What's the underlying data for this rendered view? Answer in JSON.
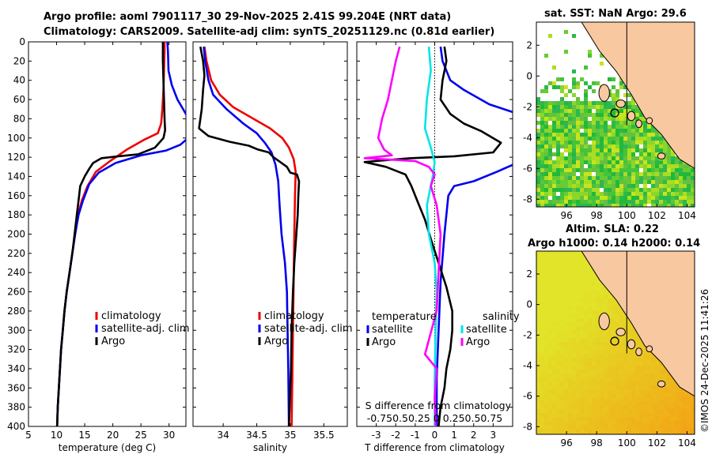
{
  "titles": {
    "line1": "Argo profile: aoml 7901117_30 29-Nov-2025 2.41S 99.204E (NRT data)",
    "line2": "Climatology: CARS2009. Satellite-adj clim: synTS_20251129.nc (0.81d earlier)",
    "sst": "sat. SST: NaN Argo: 29.6",
    "sla1": "Altim. SLA: 0.22",
    "sla2": "Argo h1000: 0.14 h2000: 0.14"
  },
  "footer": "©IMOS 24-Dec-2025 11:41:26",
  "colors": {
    "clim": "#ee0000",
    "sat": "#0000ee",
    "argo": "#000000",
    "cyan": "#00e5e5",
    "magenta": "#ff00ff",
    "land": "#f8c8a0"
  },
  "chart_data": [
    {
      "id": "temperature",
      "type": "line",
      "xlabel": "temperature (deg C)",
      "ylabel": "",
      "xlim": [
        5,
        33
      ],
      "ylim": [
        400,
        0
      ],
      "xticks": [
        5,
        10,
        15,
        20,
        25,
        30
      ],
      "yticks": [
        0,
        20,
        40,
        60,
        80,
        100,
        120,
        140,
        160,
        180,
        200,
        220,
        240,
        260,
        280,
        300,
        320,
        340,
        360,
        380,
        400
      ],
      "legend": [
        "climatology",
        "satellite-adj. clim",
        "Argo"
      ],
      "series": [
        {
          "name": "climatology",
          "color": "clim",
          "points": [
            [
              29.2,
              0
            ],
            [
              29.2,
              10
            ],
            [
              29.1,
              30
            ],
            [
              29.0,
              50
            ],
            [
              28.8,
              70
            ],
            [
              28.6,
              85
            ],
            [
              28.0,
              95
            ],
            [
              25.5,
              102
            ],
            [
              22.5,
              112
            ],
            [
              19.5,
              124
            ],
            [
              17.0,
              135
            ],
            [
              15.5,
              150
            ],
            [
              14.5,
              165
            ],
            [
              13.8,
              180
            ],
            [
              13.3,
              200
            ],
            [
              12.8,
              220
            ],
            [
              12.3,
              240
            ],
            [
              11.8,
              260
            ],
            [
              11.4,
              280
            ],
            [
              11.1,
              300
            ],
            [
              10.8,
              320
            ],
            [
              10.6,
              340
            ],
            [
              10.4,
              360
            ],
            [
              10.2,
              380
            ],
            [
              10.1,
              400
            ]
          ]
        },
        {
          "name": "satellite-adj. clim",
          "color": "sat",
          "points": [
            [
              29.7,
              0
            ],
            [
              29.8,
              10
            ],
            [
              29.9,
              30
            ],
            [
              30.5,
              45
            ],
            [
              31.5,
              60
            ],
            [
              33.0,
              75
            ],
            [
              33.5,
              80
            ]
          ],
          "points2": [
            [
              33.5,
              98
            ],
            [
              33.0,
              102
            ],
            [
              32.0,
              107
            ],
            [
              29.5,
              113
            ],
            [
              25.0,
              118
            ],
            [
              20.5,
              126
            ],
            [
              17.5,
              136
            ],
            [
              15.8,
              148
            ],
            [
              14.7,
              165
            ],
            [
              13.9,
              180
            ],
            [
              13.3,
              200
            ],
            [
              12.8,
              220
            ],
            [
              12.3,
              240
            ],
            [
              11.8,
              260
            ],
            [
              11.4,
              280
            ],
            [
              11.1,
              300
            ],
            [
              10.8,
              320
            ],
            [
              10.6,
              340
            ],
            [
              10.4,
              360
            ],
            [
              10.2,
              380
            ],
            [
              10.1,
              400
            ]
          ]
        },
        {
          "name": "Argo",
          "color": "argo",
          "points": [
            [
              28.9,
              0
            ],
            [
              28.9,
              20
            ],
            [
              29.0,
              40
            ],
            [
              29.1,
              60
            ],
            [
              29.2,
              80
            ],
            [
              29.3,
              92
            ],
            [
              29.0,
              100
            ],
            [
              27.5,
              110
            ],
            [
              24.5,
              117
            ],
            [
              21.0,
              119
            ],
            [
              18.0,
              121
            ],
            [
              16.5,
              126
            ],
            [
              15.8,
              132
            ],
            [
              15.0,
              140
            ],
            [
              14.2,
              150
            ],
            [
              13.9,
              165
            ],
            [
              13.6,
              180
            ],
            [
              13.2,
              200
            ],
            [
              12.8,
              220
            ],
            [
              12.3,
              240
            ],
            [
              11.8,
              260
            ],
            [
              11.4,
              280
            ],
            [
              11.1,
              300
            ],
            [
              10.8,
              320
            ],
            [
              10.6,
              340
            ],
            [
              10.4,
              360
            ],
            [
              10.2,
              380
            ],
            [
              10.1,
              400
            ]
          ]
        }
      ]
    },
    {
      "id": "salinity",
      "type": "line",
      "xlabel": "salinity",
      "xlim": [
        33.55,
        35.85
      ],
      "ylim": [
        400,
        0
      ],
      "xticks": [
        34,
        34.5,
        35,
        35.5
      ],
      "xticklabels": [
        "34",
        "34.5",
        "35",
        "35.5"
      ],
      "legend": [
        "climatology",
        "satellite-adj. clim",
        "Argo"
      ],
      "series": [
        {
          "name": "climatology",
          "color": "clim",
          "points": [
            [
              33.72,
              5
            ],
            [
              33.75,
              20
            ],
            [
              33.82,
              40
            ],
            [
              33.95,
              55
            ],
            [
              34.15,
              68
            ],
            [
              34.45,
              80
            ],
            [
              34.7,
              90
            ],
            [
              34.88,
              100
            ],
            [
              34.98,
              110
            ],
            [
              35.05,
              122
            ],
            [
              35.08,
              135
            ],
            [
              35.07,
              160
            ],
            [
              35.06,
              200
            ],
            [
              35.05,
              250
            ],
            [
              35.04,
              300
            ],
            [
              35.03,
              350
            ],
            [
              35.02,
              400
            ]
          ]
        },
        {
          "name": "satellite-adj. clim",
          "color": "sat",
          "points": [
            [
              33.71,
              5
            ],
            [
              33.73,
              20
            ],
            [
              33.78,
              40
            ],
            [
              33.85,
              55
            ],
            [
              34.05,
              70
            ],
            [
              34.3,
              85
            ],
            [
              34.5,
              95
            ],
            [
              34.62,
              105
            ],
            [
              34.72,
              115
            ],
            [
              34.78,
              128
            ],
            [
              34.82,
              145
            ],
            [
              34.84,
              170
            ],
            [
              34.87,
              200
            ],
            [
              34.92,
              230
            ],
            [
              34.95,
              260
            ],
            [
              34.96,
              300
            ],
            [
              34.97,
              340
            ],
            [
              34.98,
              400
            ]
          ]
        },
        {
          "name": "Argo",
          "color": "argo",
          "points": [
            [
              33.66,
              5
            ],
            [
              33.7,
              20
            ],
            [
              33.72,
              35
            ],
            [
              33.7,
              50
            ],
            [
              33.68,
              70
            ],
            [
              33.64,
              90
            ],
            [
              33.78,
              98
            ],
            [
              34.1,
              104
            ],
            [
              34.38,
              108
            ],
            [
              34.52,
              112
            ],
            [
              34.68,
              115
            ],
            [
              34.75,
              120
            ],
            [
              34.85,
              125
            ],
            [
              34.95,
              130
            ],
            [
              35.0,
              136
            ],
            [
              35.1,
              138
            ],
            [
              35.13,
              145
            ],
            [
              35.12,
              160
            ],
            [
              35.11,
              180
            ],
            [
              35.09,
              200
            ],
            [
              35.06,
              230
            ],
            [
              35.04,
              260
            ],
            [
              35.02,
              300
            ],
            [
              35.01,
              340
            ],
            [
              34.99,
              380
            ],
            [
              34.98,
              400
            ]
          ]
        }
      ]
    },
    {
      "id": "difference",
      "type": "line",
      "xlabel": "T difference from climatology",
      "xlabel2": "S difference from climatology",
      "x2ticklabels": "-0.750.50.25 0 0.250.50.75",
      "xlim": [
        -4,
        4
      ],
      "ylim": [
        400,
        0
      ],
      "xticks": [
        -3,
        -2,
        -1,
        0,
        1,
        2,
        3
      ],
      "legend_temperature": [
        "temperature",
        "satellite",
        "Argo"
      ],
      "legend_salinity": [
        "salinity",
        "satellite",
        "Argo"
      ],
      "series": [
        {
          "name": "T satellite",
          "color": "sat",
          "points": [
            [
              0.3,
              5
            ],
            [
              0.4,
              20
            ],
            [
              0.8,
              40
            ],
            [
              1.5,
              50
            ],
            [
              2.8,
              65
            ],
            [
              4.0,
              73
            ]
          ],
          "points2": [
            [
              4.0,
              128
            ],
            [
              3.2,
              135
            ],
            [
              2.0,
              145
            ],
            [
              1.0,
              150
            ],
            [
              0.7,
              160
            ],
            [
              0.5,
              200
            ],
            [
              0.3,
              250
            ],
            [
              0.2,
              300
            ],
            [
              0.1,
              350
            ],
            [
              0.1,
              400
            ]
          ]
        },
        {
          "name": "T Argo",
          "color": "argo",
          "points": [
            [
              0.5,
              5
            ],
            [
              0.6,
              20
            ],
            [
              0.4,
              40
            ],
            [
              0.3,
              60
            ],
            [
              0.8,
              75
            ],
            [
              1.5,
              85
            ],
            [
              2.4,
              93
            ],
            [
              3.4,
              105
            ],
            [
              3.0,
              115
            ],
            [
              1.0,
              119
            ],
            [
              -1.2,
              121
            ],
            [
              -2.5,
              123
            ],
            [
              -3.6,
              125
            ],
            [
              -2.5,
              130
            ],
            [
              -1.5,
              138
            ],
            [
              -1.2,
              150
            ],
            [
              -0.9,
              165
            ],
            [
              -0.5,
              185
            ],
            [
              -0.2,
              205
            ],
            [
              0.2,
              230
            ],
            [
              0.6,
              255
            ],
            [
              0.9,
              280
            ],
            [
              0.9,
              300
            ],
            [
              0.8,
              320
            ],
            [
              0.6,
              340
            ],
            [
              0.5,
              360
            ],
            [
              0.3,
              380
            ],
            [
              0.2,
              400
            ]
          ]
        },
        {
          "name": "S satellite",
          "color": "cyan",
          "points": [
            [
              -0.3,
              5
            ],
            [
              -0.2,
              30
            ],
            [
              -0.4,
              60
            ],
            [
              -0.5,
              90
            ],
            [
              -0.2,
              110
            ],
            [
              0.0,
              125
            ],
            [
              -0.1,
              140
            ],
            [
              -0.4,
              170
            ],
            [
              -0.3,
              200
            ],
            [
              0.0,
              230
            ],
            [
              0.1,
              260
            ],
            [
              0.05,
              300
            ],
            [
              0.0,
              350
            ],
            [
              0.0,
              400
            ]
          ]
        },
        {
          "name": "S Argo",
          "color": "magenta",
          "points": [
            [
              -1.8,
              5
            ],
            [
              -2.0,
              20
            ],
            [
              -2.2,
              40
            ],
            [
              -2.4,
              60
            ],
            [
              -2.7,
              80
            ],
            [
              -2.9,
              100
            ],
            [
              -2.6,
              112
            ],
            [
              -2.2,
              118
            ],
            [
              -3.6,
              121
            ],
            [
              -1.0,
              124
            ],
            [
              -0.3,
              130
            ],
            [
              0.0,
              138
            ],
            [
              -0.2,
              150
            ],
            [
              0.1,
              170
            ],
            [
              0.3,
              200
            ],
            [
              0.2,
              240
            ],
            [
              0.1,
              280
            ],
            [
              -0.3,
              310
            ],
            [
              -0.5,
              325
            ],
            [
              0.1,
              340
            ],
            [
              0.0,
              370
            ],
            [
              0.05,
              400
            ]
          ]
        }
      ]
    },
    {
      "id": "sst_map",
      "type": "heatmap",
      "title": "sat. SST: NaN Argo: 29.6",
      "xlim": [
        94,
        104.5
      ],
      "ylim": [
        -8.5,
        3.5
      ],
      "xticks": [
        96,
        98,
        100,
        102,
        104
      ],
      "yticks": [
        2,
        0,
        -2,
        -4,
        -6,
        -8
      ],
      "argo_position": [
        99.2,
        -2.4
      ]
    },
    {
      "id": "sla_map",
      "type": "heatmap",
      "title": "Altim. SLA: 0.22",
      "xlim": [
        94,
        104.5
      ],
      "ylim": [
        -8.5,
        3.5
      ],
      "xticks": [
        96,
        98,
        100,
        102,
        104
      ],
      "yticks": [
        2,
        0,
        -2,
        -4,
        -6,
        -8
      ],
      "argo_position": [
        99.2,
        -2.4
      ]
    }
  ]
}
